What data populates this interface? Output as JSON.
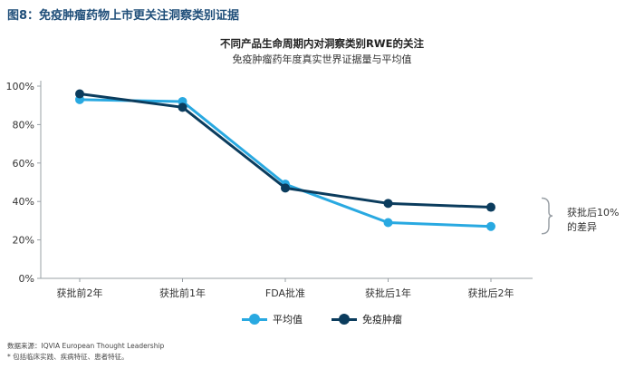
{
  "figure_title": "图8：免疫肿瘤药物上市更关注洞察类别证据",
  "footer": {
    "source": "数据来源：IQVIA European Thought Leadership",
    "note": "* 包括临床实践、疾病特征、患者特征。"
  },
  "annotation": {
    "line1": "获批后10%",
    "line2": "的差异"
  },
  "colors": {
    "average": "#29a9e1",
    "immuno_oncology": "#0b3c5d",
    "grid_axis": "#9aa0a6"
  },
  "chart_data": {
    "type": "line",
    "title": "不同产品生命周期内对洞察类别RWE的关注",
    "subtitle": "免疫肿瘤药年度真实世界证据量与平均值",
    "categories": [
      "获批前2年",
      "获批前1年",
      "FDA批准",
      "获批后1年",
      "获批后2年"
    ],
    "ylim": [
      0,
      100
    ],
    "yticks": [
      0,
      20,
      40,
      60,
      80,
      100
    ],
    "ytick_labels": [
      "0%",
      "20%",
      "40%",
      "60%",
      "80%",
      "100%"
    ],
    "xlabel": "",
    "ylabel": "",
    "grid": false,
    "legend_position": "bottom",
    "series": [
      {
        "name": "平均值",
        "values": [
          93,
          92,
          49,
          29,
          27
        ],
        "color": "#29a9e1"
      },
      {
        "name": "免疫肿瘤",
        "values": [
          96,
          89,
          47,
          39,
          37
        ],
        "color": "#0b3c5d"
      }
    ]
  }
}
